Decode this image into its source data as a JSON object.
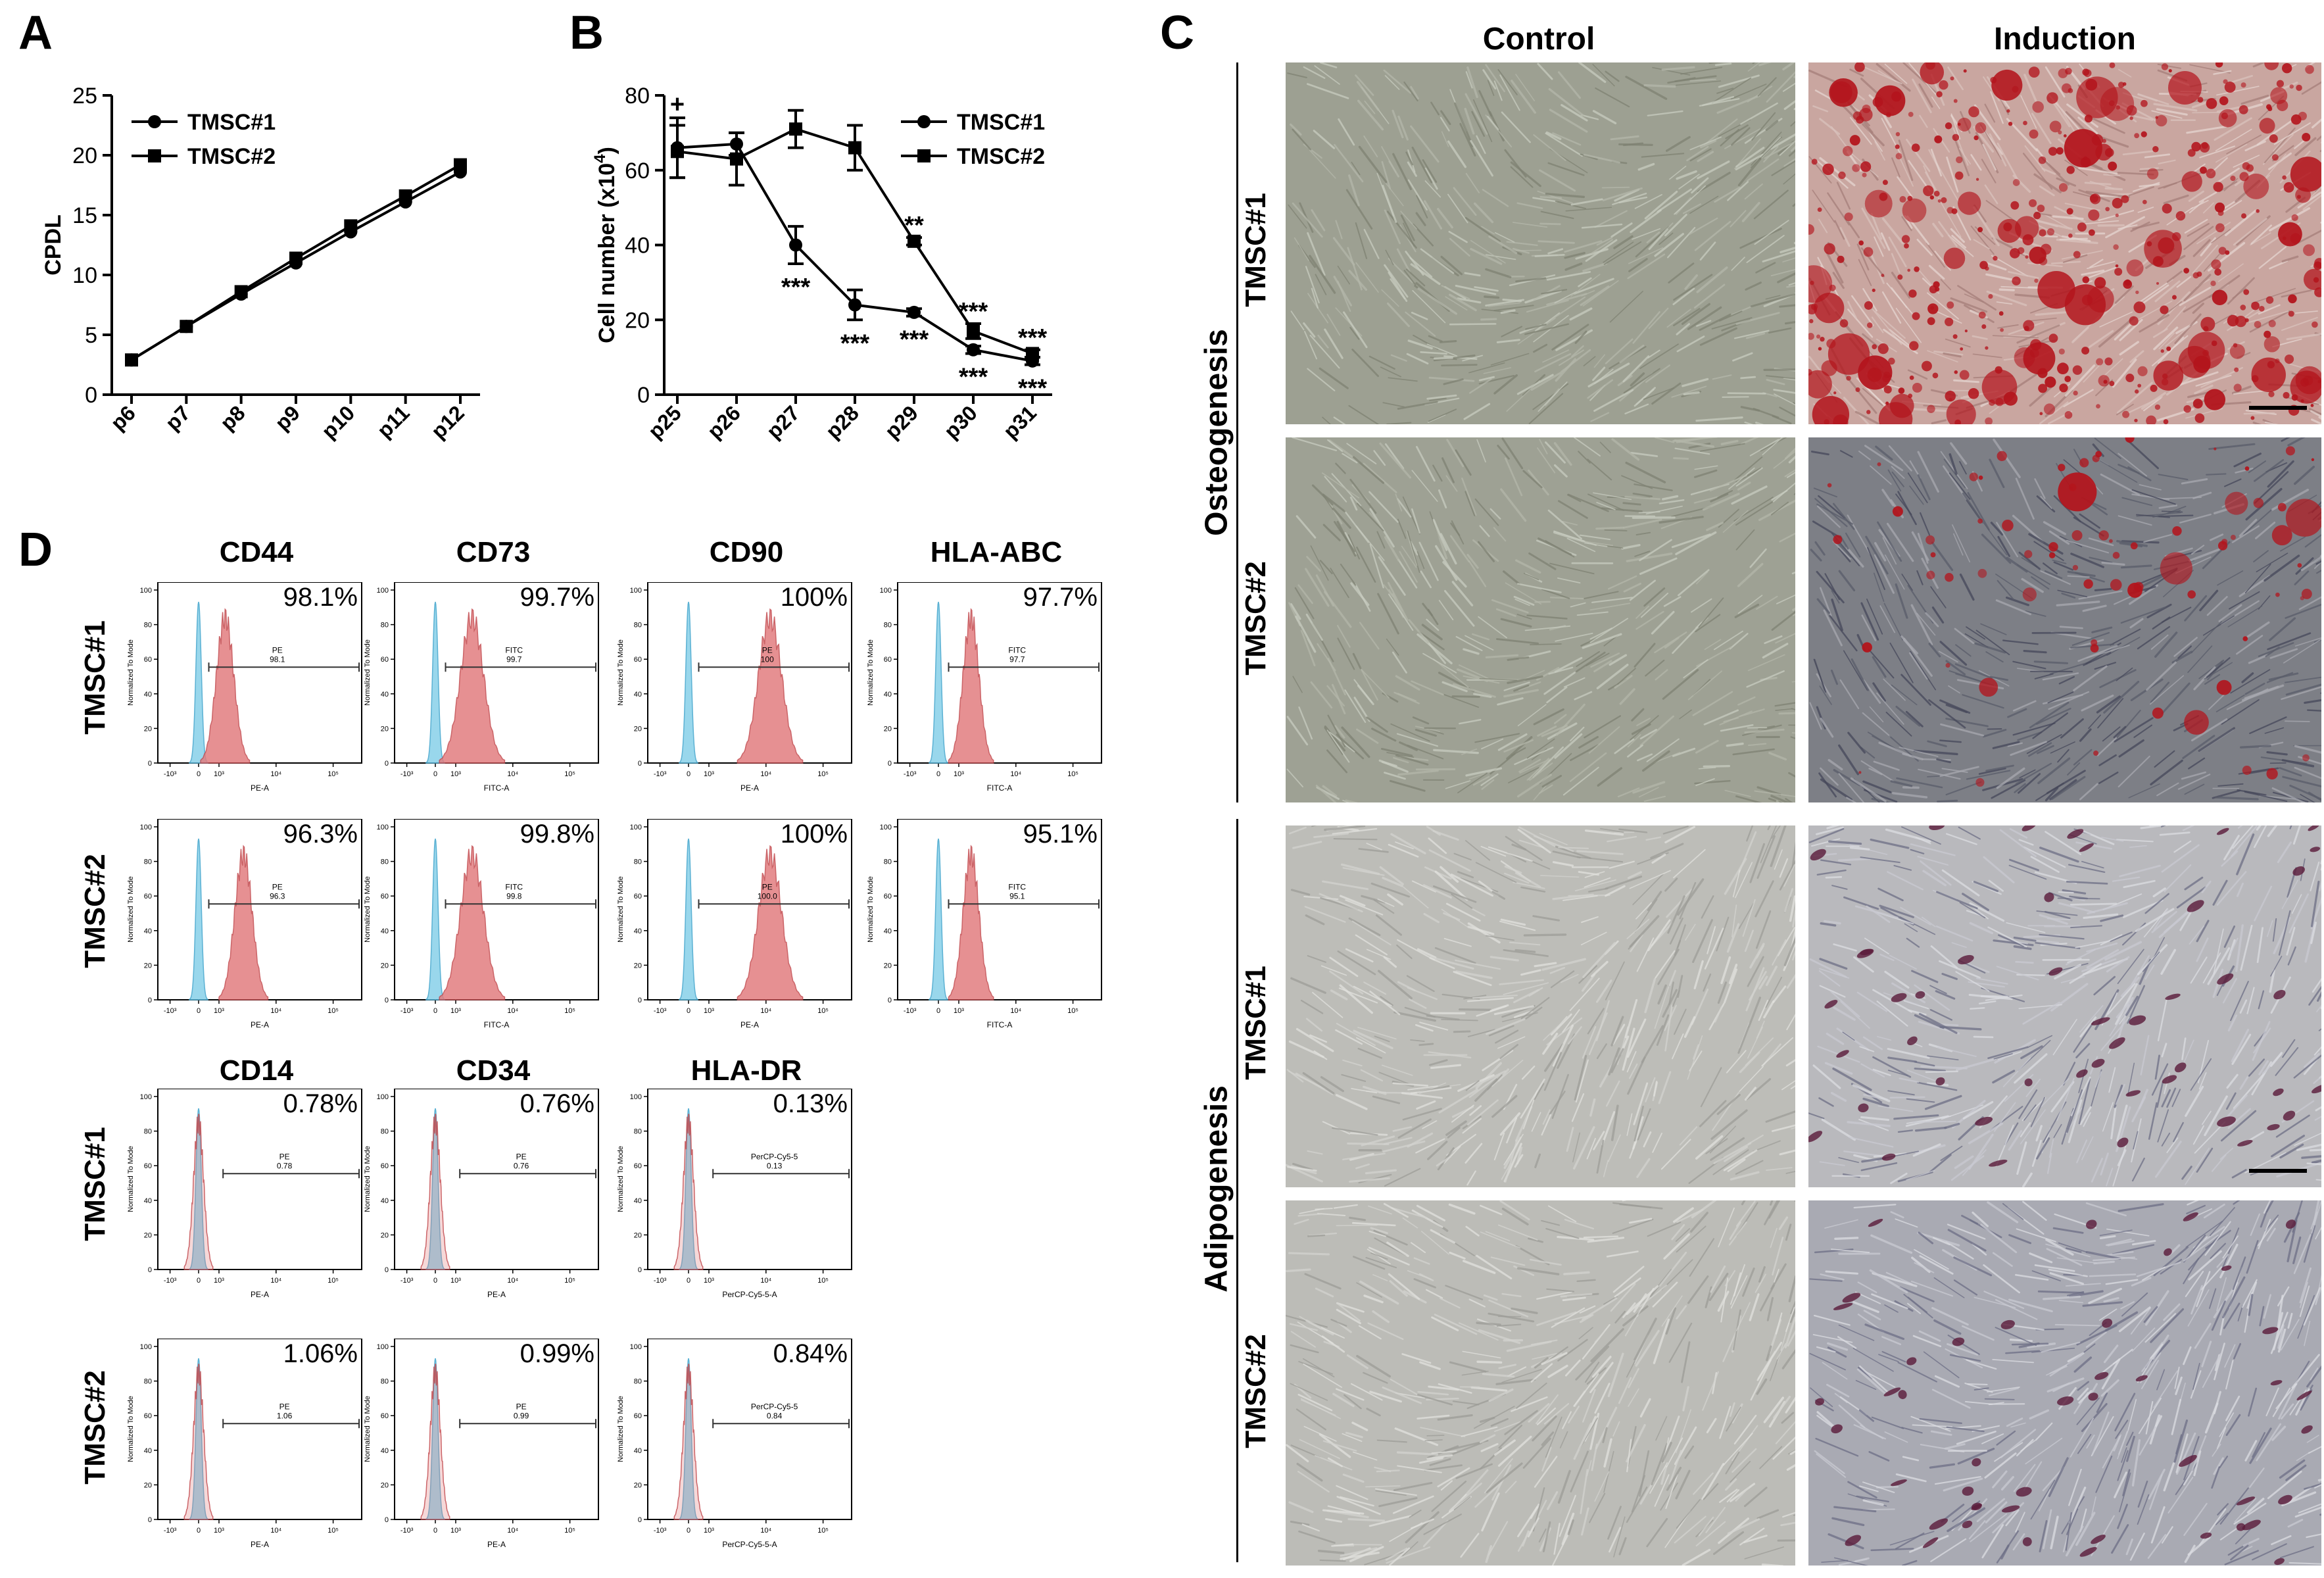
{
  "panels": {
    "A": "A",
    "B": "B",
    "C": "C",
    "D": "D"
  },
  "chart_a": {
    "chart_data": {
      "type": "line",
      "categories": [
        "p6",
        "p7",
        "p8",
        "p9",
        "p10",
        "p11",
        "p12"
      ],
      "series": [
        {
          "name": "TMSC#1",
          "values": [
            2.9,
            5.7,
            8.4,
            11.0,
            13.6,
            16.1,
            18.6
          ]
        },
        {
          "name": "TMSC#2",
          "values": [
            2.9,
            5.7,
            8.6,
            11.4,
            14.1,
            16.6,
            19.2
          ]
        }
      ],
      "ylabel": "CPDL",
      "ylim": [
        0,
        25
      ],
      "yticks": [
        "0",
        "5",
        "10",
        "15",
        "20",
        "25"
      ],
      "legend": "top-left"
    }
  },
  "chart_b": {
    "chart_data": {
      "type": "line",
      "categories": [
        "p25",
        "p26",
        "p27",
        "p28",
        "p29",
        "p30",
        "p31"
      ],
      "series": [
        {
          "name": "TMSC#1",
          "values": [
            66,
            67,
            40,
            24,
            22,
            12,
            9
          ],
          "errors": [
            8,
            3,
            5,
            4,
            1,
            1,
            1
          ]
        },
        {
          "name": "TMSC#2",
          "values": [
            65,
            63,
            71,
            66,
            41,
            17,
            11
          ],
          "errors": [
            7,
            7,
            5,
            6,
            1,
            2,
            1
          ]
        }
      ],
      "ylabel": "Cell number (x10",
      "ylabel_sup": "4",
      "ylabel_close": ")",
      "ylim": [
        0,
        80
      ],
      "yticks": [
        "0",
        "20",
        "40",
        "60",
        "80"
      ],
      "legend": "top-right",
      "annotations": [
        "+",
        "***",
        "***",
        "***",
        "***",
        "***",
        "**",
        "***",
        "***"
      ]
    }
  },
  "panel_c": {
    "col_labels": [
      "Control",
      "Induction"
    ],
    "group_labels": [
      "Osteogenesis",
      "Adipogenesis"
    ],
    "row_labels": [
      "TMSC#1",
      "TMSC#2",
      "TMSC#1",
      "TMSC#2"
    ]
  },
  "panel_d": {
    "row_labels": [
      "TMSC#1",
      "TMSC#2",
      "TMSC#1",
      "TMSC#2"
    ],
    "markers_top": [
      {
        "name": "CD44",
        "pcts": [
          "98.1%",
          "96.3%"
        ],
        "gate": "PE",
        "gate_vals": [
          "98.1",
          "96.3"
        ],
        "xaxis": "PE-A"
      },
      {
        "name": "CD73",
        "pcts": [
          "99.7%",
          "99.8%"
        ],
        "gate": "FITC",
        "gate_vals": [
          "99.7",
          "99.8"
        ],
        "xaxis": "FITC-A"
      },
      {
        "name": "CD90",
        "pcts": [
          "100%",
          "100%"
        ],
        "gate": "PE",
        "gate_vals": [
          "100",
          "100.0"
        ],
        "xaxis": "PE-A"
      },
      {
        "name": "HLA-ABC",
        "pcts": [
          "97.7%",
          "95.1%"
        ],
        "gate": "FITC",
        "gate_vals": [
          "97.7",
          "95.1"
        ],
        "xaxis": "FITC-A"
      }
    ],
    "markers_bottom": [
      {
        "name": "CD14",
        "pcts": [
          "0.78%",
          "1.06%"
        ],
        "gate": "PE",
        "gate_vals": [
          "0.78",
          "1.06"
        ],
        "xaxis": "PE-A"
      },
      {
        "name": "CD34",
        "pcts": [
          "0.76%",
          "0.99%"
        ],
        "gate": "PE",
        "gate_vals": [
          "0.76",
          "0.99"
        ],
        "xaxis": "PE-A"
      },
      {
        "name": "HLA-DR",
        "pcts": [
          "0.13%",
          "0.84%"
        ],
        "gate": "PerCP-Cy5-5",
        "gate_vals": [
          "0.13",
          "0.84"
        ],
        "xaxis": "PerCP-Cy5-5-A"
      }
    ],
    "hist_yaxis": "Normalized To Mode",
    "hist_yticks": [
      "0",
      "20",
      "40",
      "60",
      "80",
      "100"
    ],
    "hist_xticks": [
      "-10³",
      "0",
      "10³",
      "10⁴",
      "10⁵"
    ]
  },
  "colors": {
    "sample": "#e27d7f",
    "control": "#8fd3ea",
    "alizarin": "#b3141c",
    "oil": "#5a1a3a"
  }
}
